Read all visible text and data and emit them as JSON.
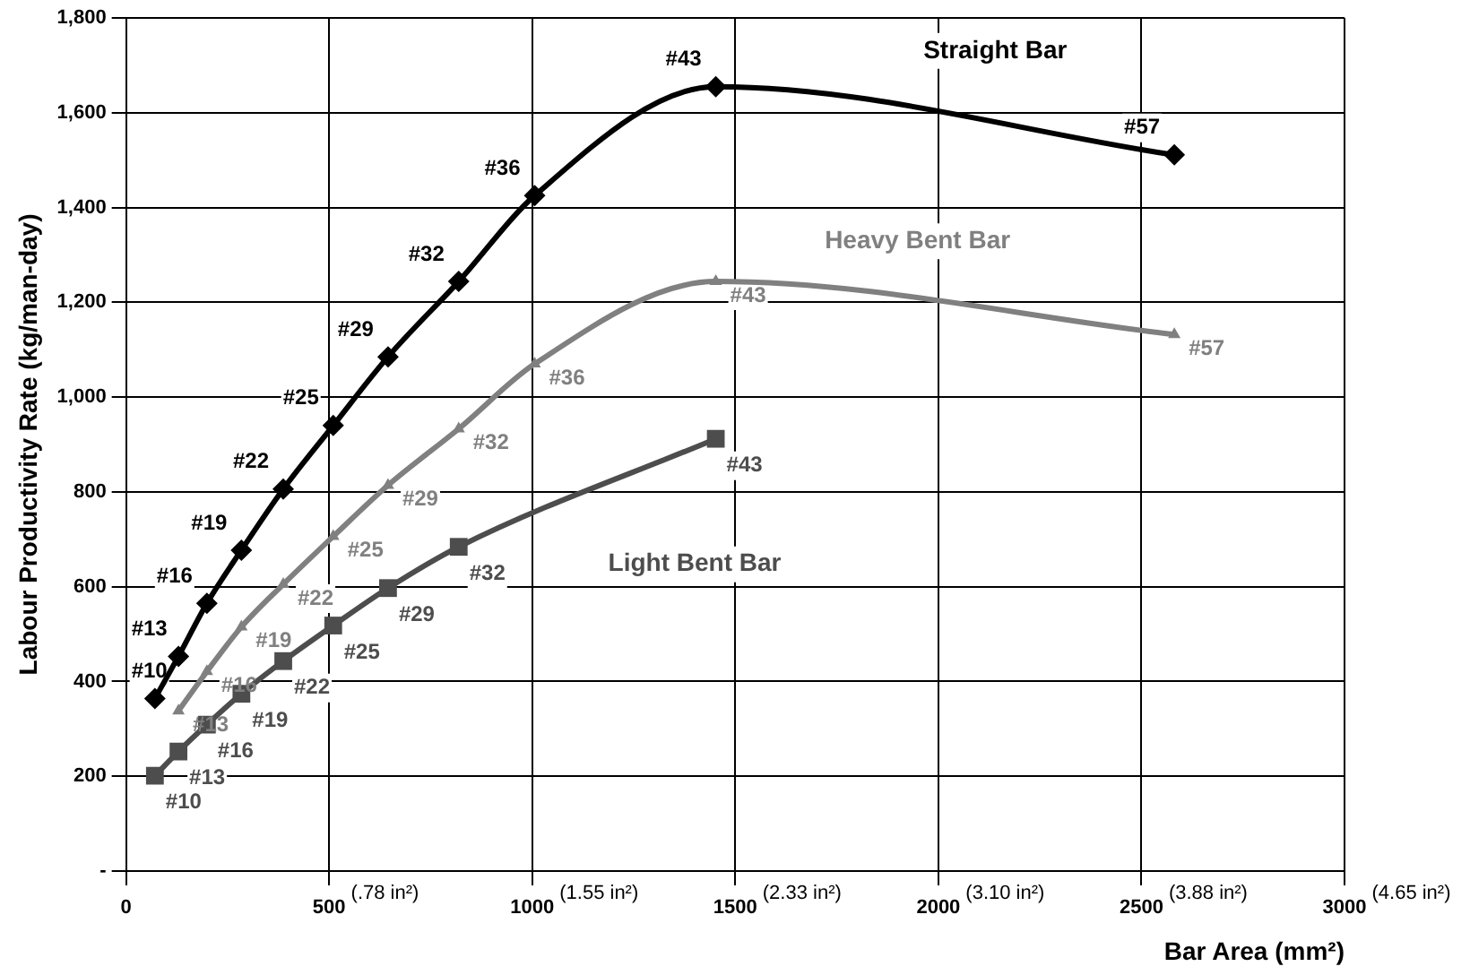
{
  "chart_data": {
    "type": "line",
    "xlabel": "Bar Area (mm²)",
    "ylabel": "Labour Productivity Rate (kg/man-day)",
    "xlim": [
      0,
      3000
    ],
    "xticks": [
      0,
      500,
      1000,
      1500,
      2000,
      2500,
      3000
    ],
    "ylim": [
      0,
      1800
    ],
    "yticks": [
      {
        "value": 0,
        "label": "-"
      },
      200,
      400,
      600,
      800,
      {
        "value": 1000,
        "label": "1,000"
      },
      {
        "value": 1200,
        "label": "1,200"
      },
      {
        "value": 1400,
        "label": "1,400"
      },
      {
        "value": 1600,
        "label": "1,600"
      },
      {
        "value": 1800,
        "label": "1,800"
      }
    ],
    "grid": true,
    "legend": false,
    "series": [
      {
        "name": "Straight Bar",
        "color": "#000000",
        "marker": "diamond",
        "x": [
          71,
          129,
          199,
          284,
          387,
          510,
          645,
          819,
          1006,
          1452,
          2581
        ],
        "values": [
          364,
          453,
          565,
          677,
          806,
          940,
          1085,
          1244,
          1425,
          1655,
          1511
        ]
      },
      {
        "name": "Heavy Bent Bar",
        "color": "#808080",
        "marker": "triangle",
        "x": [
          129,
          199,
          284,
          387,
          510,
          645,
          819,
          1006,
          1452,
          2581
        ],
        "values": [
          338,
          421,
          515,
          605,
          706,
          814,
          933,
          1070,
          1244,
          1132
        ]
      },
      {
        "name": "Light Bent Bar",
        "color": "#4d4d4d",
        "marker": "square",
        "x": [
          71,
          129,
          199,
          284,
          387,
          510,
          645,
          819,
          1452
        ],
        "values": [
          201,
          252,
          309,
          374,
          443,
          518,
          597,
          684,
          912
        ]
      }
    ],
    "annotations": [
      "(.78 in²)",
      "(1.55 in²)",
      "(2.33 in²)",
      "(3.10 in²)",
      "(3.88 in²)",
      "(4.65 in²)",
      {
        "text": "#10",
        "x": 71,
        "y": 364
      },
      {
        "text": "#13",
        "x": 129,
        "y": 453
      },
      {
        "text": "#16",
        "x": 199,
        "y": 565
      },
      {
        "text": "#19",
        "x": 284,
        "y": 677
      },
      {
        "text": "#22",
        "x": 387,
        "y": 806
      },
      {
        "text": "#25",
        "x": 510,
        "y": 940
      },
      {
        "text": "#29",
        "x": 645,
        "y": 1085
      },
      {
        "text": "#32",
        "x": 819,
        "y": 1244
      },
      {
        "text": "#36",
        "x": 1006,
        "y": 1425
      },
      {
        "text": "#43",
        "x": 1452,
        "y": 1655
      },
      {
        "text": "#57",
        "x": 2581,
        "y": 1511
      },
      {
        "text": "#13",
        "x": 129,
        "y": 338
      },
      {
        "text": "#16",
        "x": 199,
        "y": 421
      },
      {
        "text": "#19",
        "x": 284,
        "y": 515
      },
      {
        "text": "#22",
        "x": 387,
        "y": 605
      },
      {
        "text": "#25",
        "x": 510,
        "y": 706
      },
      {
        "text": "#29",
        "x": 645,
        "y": 814
      },
      {
        "text": "#32",
        "x": 819,
        "y": 933
      },
      {
        "text": "#36",
        "x": 1006,
        "y": 1070
      },
      {
        "text": "#43",
        "x": 1452,
        "y": 1244
      },
      {
        "text": "#57",
        "x": 2581,
        "y": 1132
      },
      {
        "text": "#10",
        "x": 71,
        "y": 201
      },
      {
        "text": "#13",
        "x": 129,
        "y": 252
      },
      {
        "text": "#16",
        "x": 199,
        "y": 309
      },
      {
        "text": "#19",
        "x": 284,
        "y": 374
      },
      {
        "text": "#22",
        "x": 387,
        "y": 443
      },
      {
        "text": "#25",
        "x": 510,
        "y": 518
      },
      {
        "text": "#29",
        "x": 645,
        "y": 597
      },
      {
        "text": "#32",
        "x": 819,
        "y": 684
      },
      {
        "text": "#43",
        "x": 1452,
        "y": 912
      }
    ]
  }
}
